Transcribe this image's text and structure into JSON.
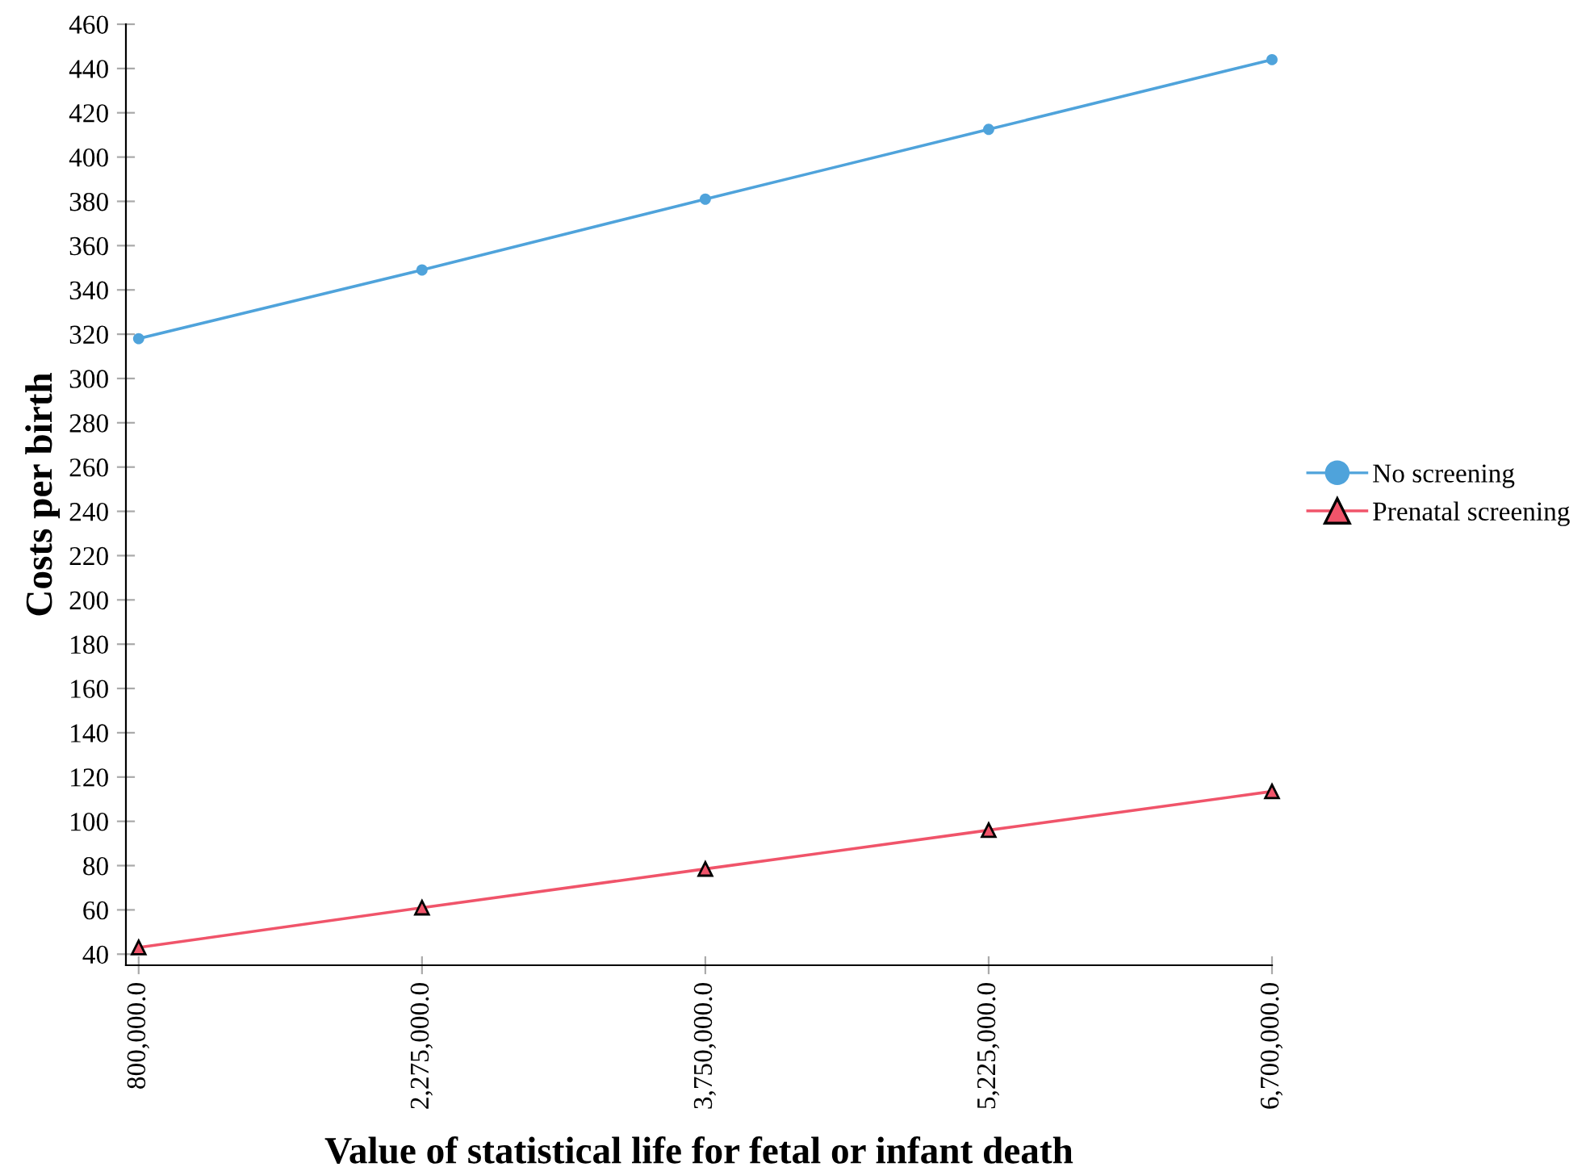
{
  "chart_data": {
    "type": "line",
    "xlabel": "Value of statistical life for fetal or infant death",
    "ylabel": "Costs per birth",
    "categories": [
      "800,000.0",
      "2,275,000.0",
      "3,750,000.0",
      "5,225,000.0",
      "6,700,000.0"
    ],
    "series": [
      {
        "name": "No screening",
        "color": "#4fa3db",
        "marker": "circle",
        "values": [
          318,
          349,
          381,
          412.5,
          444
        ]
      },
      {
        "name": "Prenatal screening",
        "color": "#f0546a",
        "marker": "triangle",
        "values": [
          43,
          61,
          78.5,
          96,
          113.5
        ]
      }
    ],
    "ylim": [
      35,
      460
    ],
    "yticks": [
      40,
      60,
      80,
      100,
      120,
      140,
      160,
      180,
      200,
      220,
      240,
      260,
      280,
      300,
      320,
      340,
      360,
      380,
      400,
      420,
      440,
      460
    ],
    "grid": false,
    "legend": "right",
    "line_style": "solid"
  }
}
